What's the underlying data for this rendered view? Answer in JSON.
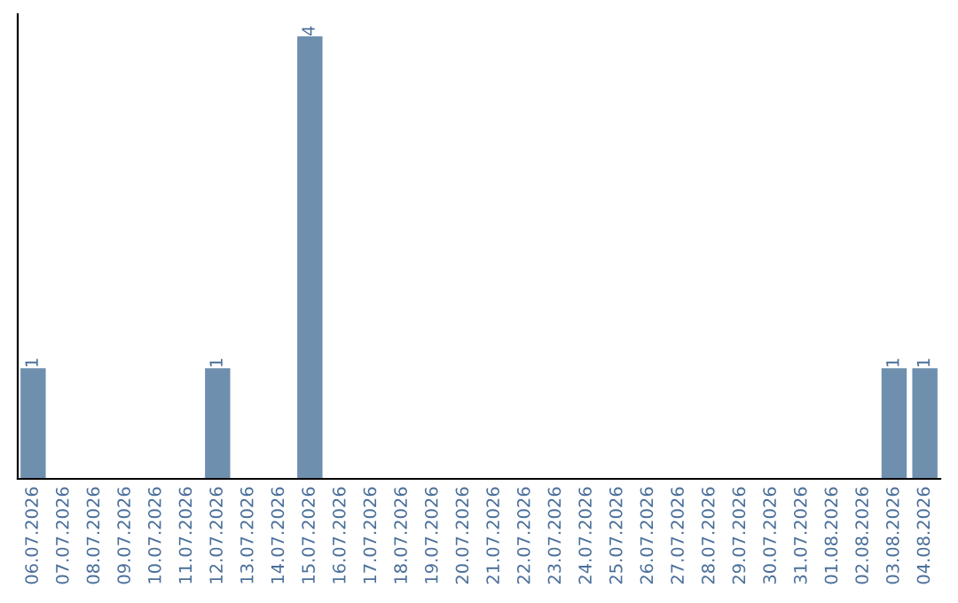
{
  "chart_data": {
    "type": "bar",
    "categories": [
      "06.07.2026",
      "07.07.2026",
      "08.07.2026",
      "09.07.2026",
      "10.07.2026",
      "11.07.2026",
      "12.07.2026",
      "13.07.2026",
      "14.07.2026",
      "15.07.2026",
      "16.07.2026",
      "17.07.2026",
      "18.07.2026",
      "19.07.2026",
      "20.07.2026",
      "21.07.2026",
      "22.07.2026",
      "23.07.2026",
      "24.07.2026",
      "25.07.2026",
      "26.07.2026",
      "27.07.2026",
      "28.07.2026",
      "29.07.2026",
      "30.07.2026",
      "31.07.2026",
      "01.08.2026",
      "02.08.2026",
      "03.08.2026",
      "04.08.2026"
    ],
    "values": [
      1,
      0,
      0,
      0,
      0,
      0,
      1,
      0,
      0,
      4,
      0,
      0,
      0,
      0,
      0,
      0,
      0,
      0,
      0,
      0,
      0,
      0,
      0,
      0,
      0,
      0,
      0,
      0,
      1,
      1
    ],
    "value_labels": [
      "1",
      null,
      null,
      null,
      null,
      null,
      "1",
      null,
      null,
      "4",
      null,
      null,
      null,
      null,
      null,
      null,
      null,
      null,
      null,
      null,
      null,
      null,
      null,
      null,
      null,
      null,
      null,
      null,
      "1",
      "1"
    ],
    "color": "#6e8fae",
    "ylim": [
      0,
      4.2
    ],
    "tick_labels": "x",
    "grid": false
  }
}
